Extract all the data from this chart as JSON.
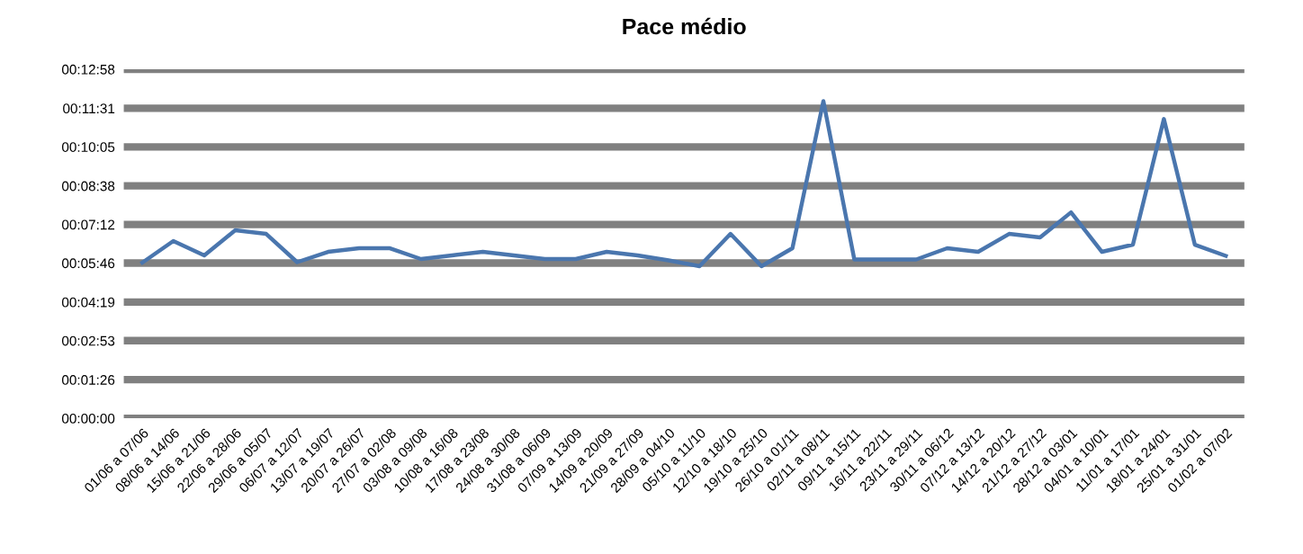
{
  "chart_data": {
    "type": "line",
    "title": "Pace médio",
    "categories": [
      "01/06 a 07/06",
      "08/06 a 14/06",
      "15/06 a 21/06",
      "22/06 a 28/06",
      "29/06 a 05/07",
      "06/07 a 12/07",
      "13/07 a 19/07",
      "20/07 a 26/07",
      "27/07 a 02/08",
      "03/08 a 09/08",
      "10/08 a 16/08",
      "17/08 a 23/08",
      "24/08 a 30/08",
      "31/08 a 06/09",
      "07/09 a 13/09",
      "14/09 a 20/09",
      "21/09 a 27/09",
      "28/09 a 04/10",
      "05/10 a 11/10",
      "12/10 a 18/10",
      "19/10 a 25/10",
      "26/10 a 01/11",
      "02/11 a 08/11",
      "09/11 a 15/11",
      "16/11 a 22/11",
      "23/11 a 29/11",
      "30/11 a 06/12",
      "07/12 a 13/12",
      "14/12 a 20/12",
      "21/12 a 27/12",
      "28/12 a 03/01",
      "04/01 a 10/01",
      "11/01 a 17/01",
      "18/01 a 24/01",
      "25/01 a 31/01",
      "01/02 a 07/02"
    ],
    "series": [
      {
        "color": "#4a76ae",
        "values": [
          347,
          395,
          363,
          419,
          411,
          348,
          371,
          379,
          379,
          355,
          363,
          371,
          363,
          355,
          355,
          371,
          363,
          352,
          339,
          411,
          339,
          379,
          707,
          354,
          354,
          354,
          379,
          371,
          411,
          403,
          459,
          371,
          387,
          667,
          387,
          362
        ]
      }
    ],
    "ylim": [
      0,
      778
    ],
    "yticks": [
      {
        "value": 0,
        "label": "00:00:00"
      },
      {
        "value": 86,
        "label": "00:01:26"
      },
      {
        "value": 173,
        "label": "00:02:53"
      },
      {
        "value": 259,
        "label": "00:04:19"
      },
      {
        "value": 346,
        "label": "00:05:46"
      },
      {
        "value": 432,
        "label": "00:07:12"
      },
      {
        "value": 518,
        "label": "00:08:38"
      },
      {
        "value": 605,
        "label": "00:10:05"
      },
      {
        "value": 691,
        "label": "00:11:31"
      },
      {
        "value": 778,
        "label": "00:12:58"
      }
    ],
    "grid": "y",
    "marker": "none",
    "line_style": "solid"
  }
}
